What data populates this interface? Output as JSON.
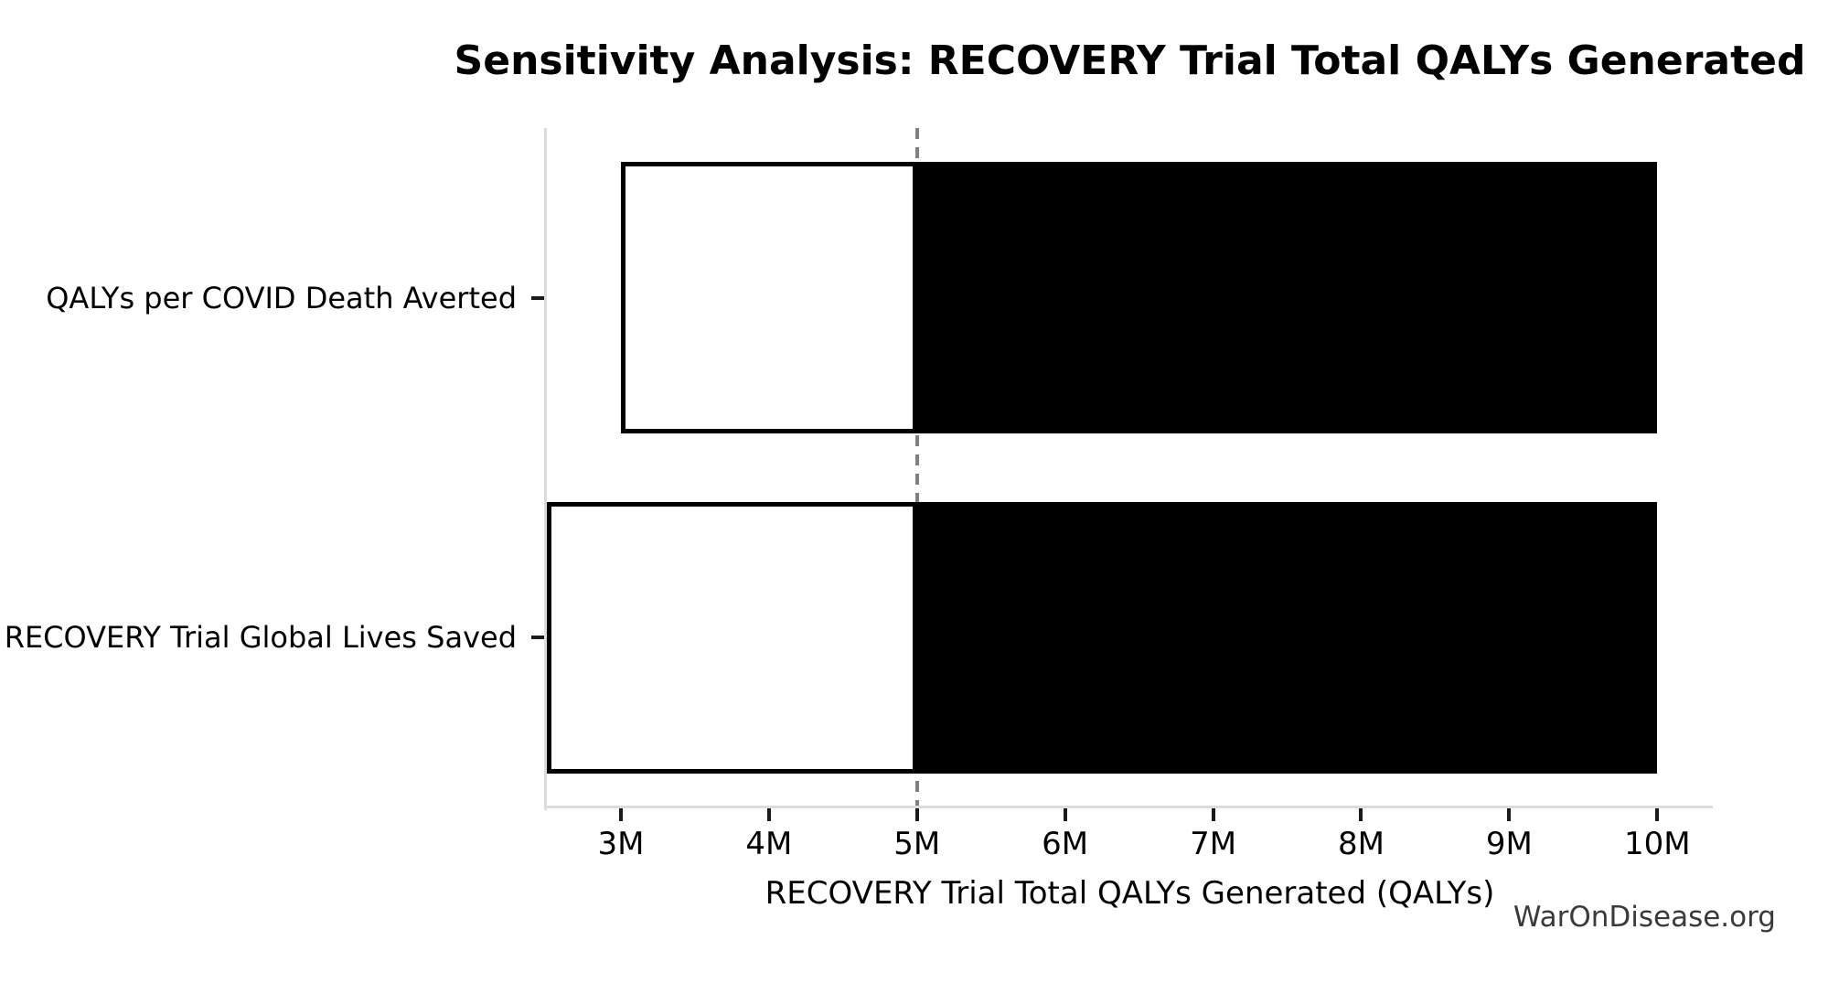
{
  "title": "Sensitivity Analysis: RECOVERY Trial Total QALYs Generated",
  "watermark": "WarOnDisease.org",
  "chart_data": {
    "type": "bar",
    "variant": "tornado-sensitivity",
    "orientation": "horizontal",
    "title": "Sensitivity Analysis: RECOVERY Trial Total QALYs Generated",
    "xlabel": "RECOVERY Trial Total QALYs Generated (QALYs)",
    "value_unit": "millions of QALYs",
    "baseline": 5,
    "xlim": [
      2.5,
      10.375
    ],
    "grid": false,
    "legend": false,
    "categories": [
      "QALYs per COVID Death Averted",
      "RECOVERY Trial Global Lives Saved"
    ],
    "bars": [
      {
        "category": "QALYs per COVID Death Averted",
        "low": 3,
        "high": 10
      },
      {
        "category": "RECOVERY Trial Global Lives Saved",
        "low": 2.5,
        "high": 10
      }
    ],
    "x_ticks": [
      {
        "value": 3,
        "label": "3M"
      },
      {
        "value": 4,
        "label": "4M"
      },
      {
        "value": 5,
        "label": "5M"
      },
      {
        "value": 6,
        "label": "6M"
      },
      {
        "value": 7,
        "label": "7M"
      },
      {
        "value": 8,
        "label": "8M"
      },
      {
        "value": 9,
        "label": "9M"
      },
      {
        "value": 10,
        "label": "10M"
      }
    ],
    "baseline_line": {
      "value": 5,
      "style": "dashed",
      "color": "#7f7f7f"
    },
    "colors": {
      "low_segment_fill": "#ffffff",
      "high_segment_fill": "#000000",
      "bar_edge": "#000000",
      "spine": "#dcdcdc",
      "tick_mark": "#1a1a1a",
      "text": "#000000",
      "watermark": "#3a3a3a"
    }
  }
}
